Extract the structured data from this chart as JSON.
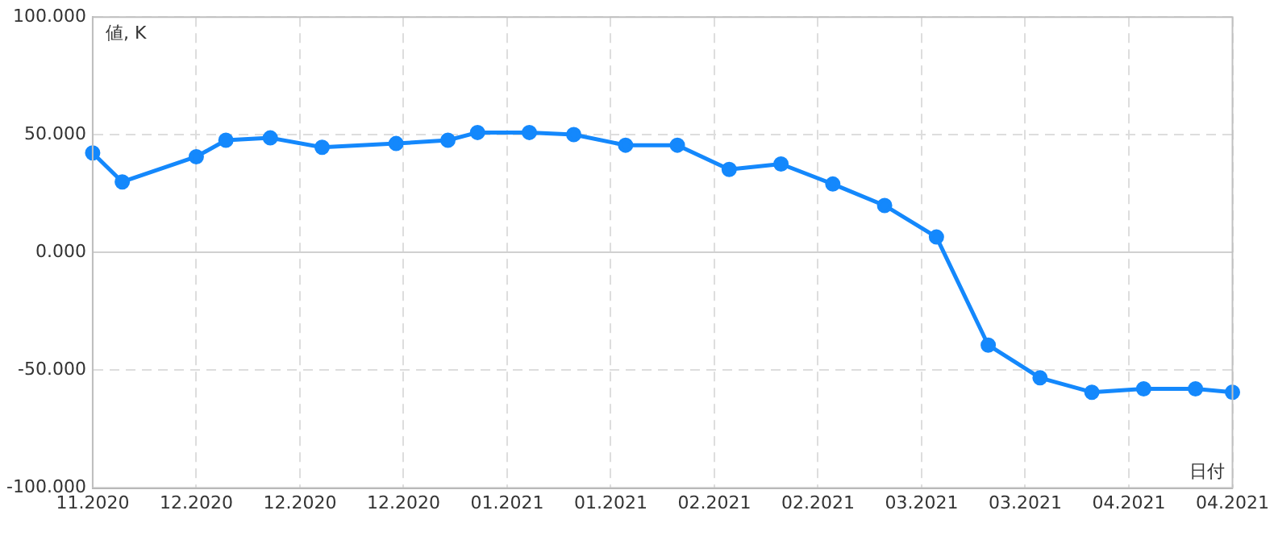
{
  "chart_data": {
    "type": "line",
    "xlabel": "日付",
    "ylabel": "値, K",
    "x": [
      "2020-11-17",
      "2020-11-21",
      "2020-12-01",
      "2020-12-05",
      "2020-12-11",
      "2020-12-18",
      "2020-12-28",
      "2021-01-04",
      "2021-01-08",
      "2021-01-15",
      "2021-01-21",
      "2021-01-28",
      "2021-02-04",
      "2021-02-11",
      "2021-02-18",
      "2021-02-25",
      "2021-03-04",
      "2021-03-11",
      "2021-03-18",
      "2021-03-25",
      "2021-04-01",
      "2021-04-08",
      "2021-04-15",
      "2021-04-20"
    ],
    "series": [
      {
        "color": "#1488fc",
        "values": [
          42.3,
          30,
          40.7,
          47.7,
          48.7,
          44.7,
          46.3,
          47.7,
          51,
          51,
          50.1,
          45.6,
          45.6,
          35.3,
          37.6,
          29.1,
          20,
          6.6,
          -39.3,
          -53.2,
          -59.3,
          -57.9,
          -57.9,
          -59.3
        ]
      }
    ],
    "xlim": [
      "2020-11-17",
      "2021-04-20"
    ],
    "xticks": [
      {
        "value": "2020-11-17",
        "label": "11.2020"
      },
      {
        "value": "2020-12-01",
        "label": "12.2020"
      },
      {
        "value": "2020-12-15",
        "label": "12.2020"
      },
      {
        "value": "2020-12-29",
        "label": "12.2020"
      },
      {
        "value": "2021-01-12",
        "label": "01.2021"
      },
      {
        "value": "2021-01-26",
        "label": "01.2021"
      },
      {
        "value": "2021-02-09",
        "label": "02.2021"
      },
      {
        "value": "2021-02-23",
        "label": "02.2021"
      },
      {
        "value": "2021-03-09",
        "label": "03.2021"
      },
      {
        "value": "2021-03-23",
        "label": "03.2021"
      },
      {
        "value": "2021-04-06",
        "label": "04.2021"
      },
      {
        "value": "2021-04-20",
        "label": "04.2021"
      }
    ],
    "ylim": [
      -100,
      100
    ],
    "yticks": [
      {
        "value": -100,
        "label": "-100.000"
      },
      {
        "value": -50,
        "label": "-50.000"
      },
      {
        "value": 0,
        "label": "0.000"
      },
      {
        "value": 50,
        "label": "50.000"
      },
      {
        "value": 100,
        "label": "100.000"
      }
    ],
    "grid": true,
    "legend": false,
    "marker": "circle",
    "line_style": "solid"
  }
}
